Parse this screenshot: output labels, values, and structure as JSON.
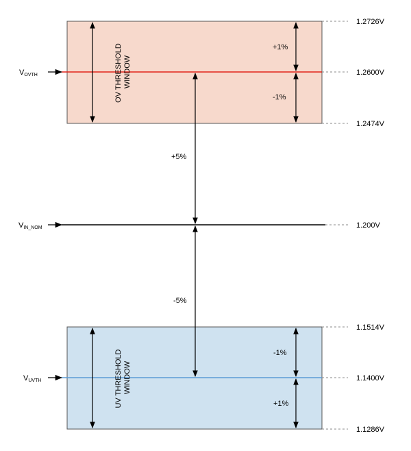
{
  "levels": {
    "ov_top": "1.2726V",
    "ov_mid": "1.2600V",
    "ov_bot": "1.2474V",
    "nom": "1.200V",
    "uv_top": "1.1514V",
    "uv_mid": "1.1400V",
    "uv_bot": "1.1286V"
  },
  "signals": {
    "ovth": {
      "main": "V",
      "sub": "OVTH"
    },
    "nom": {
      "main": "V",
      "sub": "IN_NOM"
    },
    "uvth": {
      "main": "V",
      "sub": "UVTH"
    }
  },
  "windows": {
    "ov": {
      "line1": "OV THRESHOLD",
      "line2": "WINDOW",
      "fill": "#f7d9cc",
      "line_color": "#e2231a"
    },
    "uv": {
      "line1": "UV THRESHOLD",
      "line2": "WINDOW",
      "fill": "#cfe2f0",
      "line_color": "#5b9bd5"
    }
  },
  "percents": {
    "ov_plus1": "+1%",
    "ov_minus1": "-1%",
    "plus5": "+5%",
    "minus5": "-5%",
    "uv_minus1": "-1%",
    "uv_plus1": "+1%"
  }
}
